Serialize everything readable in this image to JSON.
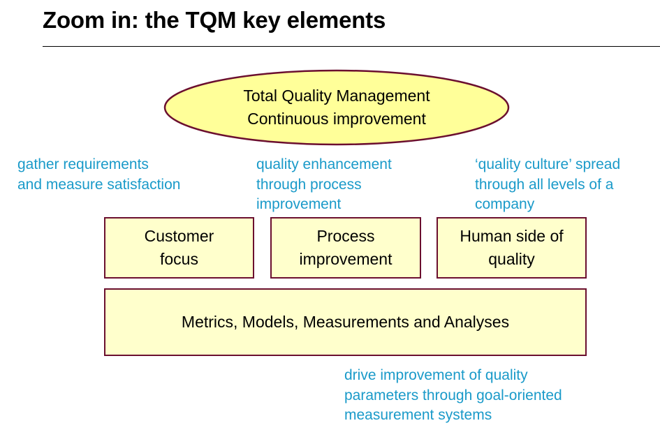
{
  "slide": {
    "title": "Zoom in: the TQM key elements"
  },
  "diagram": {
    "top_ellipse": {
      "line1": "Total Quality Management",
      "line2": "Continuous improvement"
    },
    "notes": {
      "customer": [
        "gather requirements",
        "and measure satisfaction"
      ],
      "process": [
        "quality enhancement",
        "through process",
        "improvement"
      ],
      "human": [
        "‘quality culture’ spread",
        "through all levels of a",
        "company"
      ],
      "metrics": [
        "drive improvement of quality",
        "parameters through goal-oriented",
        "measurement systems"
      ]
    },
    "pillars": {
      "customer_focus": [
        "Customer",
        "focus"
      ],
      "process_improvement": [
        "Process",
        "improvement"
      ],
      "human_side": [
        "Human side of",
        "quality"
      ]
    },
    "foundation": {
      "label": "Metrics, Models, Measurements and Analyses"
    },
    "colors": {
      "box_fill": "#ffffcc",
      "ellipse_fill": "#ffff99",
      "border": "#6b0f2f",
      "note_text": "#1a9ac9"
    }
  }
}
